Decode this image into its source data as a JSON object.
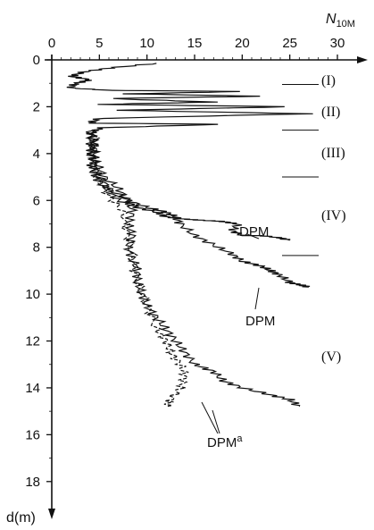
{
  "chart_data": {
    "type": "line",
    "x_axis": {
      "label": "N",
      "label_sub": "10M",
      "position": "top",
      "range": [
        0,
        30
      ],
      "ticks": [
        0,
        5,
        10,
        15,
        20,
        25,
        30
      ]
    },
    "y_axis": {
      "label": "d(m)",
      "inverted": true,
      "range": [
        0,
        19
      ],
      "ticks": [
        0,
        2,
        4,
        6,
        8,
        10,
        12,
        14,
        16,
        18
      ]
    },
    "grid": false,
    "series": [
      {
        "name": "DPM",
        "label_text": "DPM",
        "points": [
          [
            11.0,
            0.15
          ],
          [
            6.0,
            0.35
          ],
          [
            3.5,
            0.5
          ],
          [
            2.0,
            0.7
          ],
          [
            4.0,
            0.85
          ],
          [
            2.5,
            1.0
          ],
          [
            2.0,
            1.2
          ],
          [
            6.0,
            1.3
          ],
          [
            20.0,
            1.35
          ],
          [
            8.0,
            1.45
          ],
          [
            22.0,
            1.55
          ],
          [
            6.0,
            1.65
          ],
          [
            17.0,
            1.8
          ],
          [
            5.0,
            1.9
          ],
          [
            25.0,
            2.0
          ],
          [
            7.0,
            2.15
          ],
          [
            27.0,
            2.3
          ],
          [
            5.0,
            2.5
          ],
          [
            4.0,
            2.7
          ],
          [
            18.0,
            2.75
          ],
          [
            5.0,
            2.9
          ],
          [
            4.0,
            3.2
          ],
          [
            4.4,
            3.6
          ],
          [
            4.0,
            4.0
          ],
          [
            4.5,
            4.4
          ],
          [
            4.3,
            4.8
          ],
          [
            5.0,
            5.2
          ],
          [
            6.0,
            5.6
          ],
          [
            7.0,
            6.0
          ],
          [
            9.0,
            6.3
          ],
          [
            11.0,
            6.5
          ],
          [
            12.0,
            6.7
          ],
          [
            14.0,
            6.8
          ],
          [
            16.0,
            6.85
          ],
          [
            18.0,
            6.9
          ],
          [
            19.5,
            7.0
          ],
          [
            19.0,
            7.3
          ],
          [
            20.0,
            7.5
          ],
          [
            22.0,
            7.5
          ],
          [
            24.0,
            7.6
          ],
          [
            25.0,
            7.7
          ]
        ]
      },
      {
        "name": "DPM",
        "label_text": "DPM",
        "points": [
          [
            4.5,
            3.0
          ],
          [
            4.0,
            3.5
          ],
          [
            4.6,
            4.0
          ],
          [
            4.2,
            4.5
          ],
          [
            5.0,
            5.0
          ],
          [
            6.0,
            5.5
          ],
          [
            8.0,
            6.0
          ],
          [
            10.0,
            6.3
          ],
          [
            12.0,
            6.5
          ],
          [
            13.0,
            6.7
          ],
          [
            13.5,
            7.0
          ],
          [
            15.0,
            7.5
          ],
          [
            17.0,
            7.9
          ],
          [
            19.0,
            8.3
          ],
          [
            20.0,
            8.6
          ],
          [
            22.0,
            8.8
          ],
          [
            23.0,
            9.0
          ],
          [
            24.0,
            9.2
          ],
          [
            25.0,
            9.5
          ],
          [
            26.0,
            9.6
          ],
          [
            27.0,
            9.7
          ]
        ]
      },
      {
        "name": "DPM",
        "label_text": "DPM",
        "label_sup": "a",
        "points": [
          [
            4.0,
            3.0
          ],
          [
            4.5,
            3.5
          ],
          [
            4.2,
            4.0
          ],
          [
            4.8,
            4.5
          ],
          [
            5.5,
            5.0
          ],
          [
            7.0,
            5.5
          ],
          [
            8.0,
            6.0
          ],
          [
            8.5,
            6.5
          ],
          [
            8.0,
            7.0
          ],
          [
            8.5,
            7.5
          ],
          [
            8.0,
            8.0
          ],
          [
            8.5,
            8.5
          ],
          [
            9.0,
            9.0
          ],
          [
            9.0,
            9.5
          ],
          [
            9.5,
            10.0
          ],
          [
            10.0,
            10.5
          ],
          [
            11.0,
            11.0
          ],
          [
            12.0,
            11.5
          ],
          [
            13.0,
            12.0
          ],
          [
            14.0,
            12.5
          ],
          [
            15.0,
            13.0
          ],
          [
            17.0,
            13.3
          ],
          [
            18.0,
            13.7
          ],
          [
            20.0,
            14.0
          ],
          [
            23.0,
            14.3
          ],
          [
            25.0,
            14.5
          ],
          [
            26.0,
            14.8
          ]
        ]
      },
      {
        "name": "DPM",
        "label_text": "",
        "points": [
          [
            4.5,
            3.0
          ],
          [
            4.3,
            4.0
          ],
          [
            4.8,
            5.0
          ],
          [
            6.0,
            5.8
          ],
          [
            7.5,
            6.5
          ],
          [
            8.0,
            7.5
          ],
          [
            8.5,
            8.5
          ],
          [
            9.0,
            9.5
          ],
          [
            10.0,
            10.5
          ],
          [
            11.0,
            11.5
          ],
          [
            12.0,
            12.0
          ],
          [
            12.5,
            12.5
          ],
          [
            13.5,
            13.0
          ],
          [
            14.0,
            13.5
          ],
          [
            13.5,
            14.0
          ],
          [
            12.5,
            14.5
          ],
          [
            12.0,
            14.8
          ]
        ]
      }
    ],
    "zones": [
      {
        "label": "(I)",
        "boundary_depth": 1.05
      },
      {
        "label": "(II)",
        "boundary_depth": 3.0
      },
      {
        "label": "(III)",
        "boundary_depth": 5.0
      },
      {
        "label": "(IV)",
        "boundary_depth": 8.35
      },
      {
        "label": "(V)",
        "boundary_depth": null
      }
    ]
  }
}
